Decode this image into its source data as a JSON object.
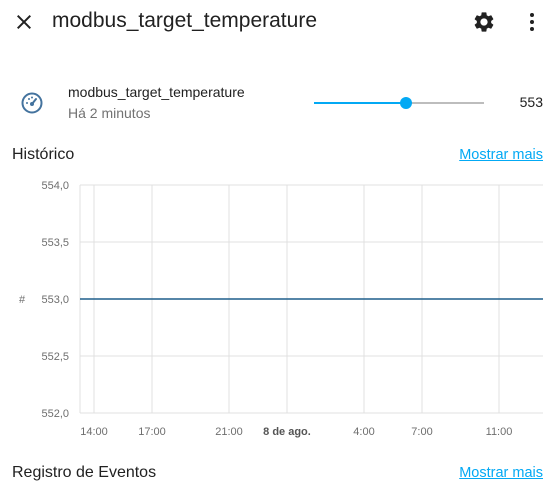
{
  "header": {
    "title": "modbus_target_temperature",
    "close_icon": "close-icon",
    "settings_icon": "gear-icon",
    "more_icon": "more-vertical-icon"
  },
  "entity": {
    "icon": "gauge-icon",
    "name": "modbus_target_temperature",
    "last_changed": "Há 2 minutos",
    "value": "553",
    "slider_fraction": 0.54,
    "accent_color": "#03a9f4"
  },
  "history": {
    "title": "Histórico",
    "more_link": "Mostrar mais"
  },
  "chart_data": {
    "type": "line",
    "ylabel": "#",
    "ylim": [
      552.0,
      554.0
    ],
    "y_ticks": [
      "554,0",
      "553,5",
      "553,0",
      "552,5",
      "552,0"
    ],
    "x_ticks": [
      "14:00",
      "17:00",
      "21:00",
      "8 de ago.",
      "4:00",
      "7:00",
      "11:00"
    ],
    "series": [
      {
        "color": "#1f5f8b",
        "x": [
          "14:00",
          "11:00"
        ],
        "values": [
          553.0,
          553.0
        ]
      }
    ],
    "grid": true
  },
  "events": {
    "title": "Registro de Eventos",
    "more_link": "Mostrar mais"
  }
}
